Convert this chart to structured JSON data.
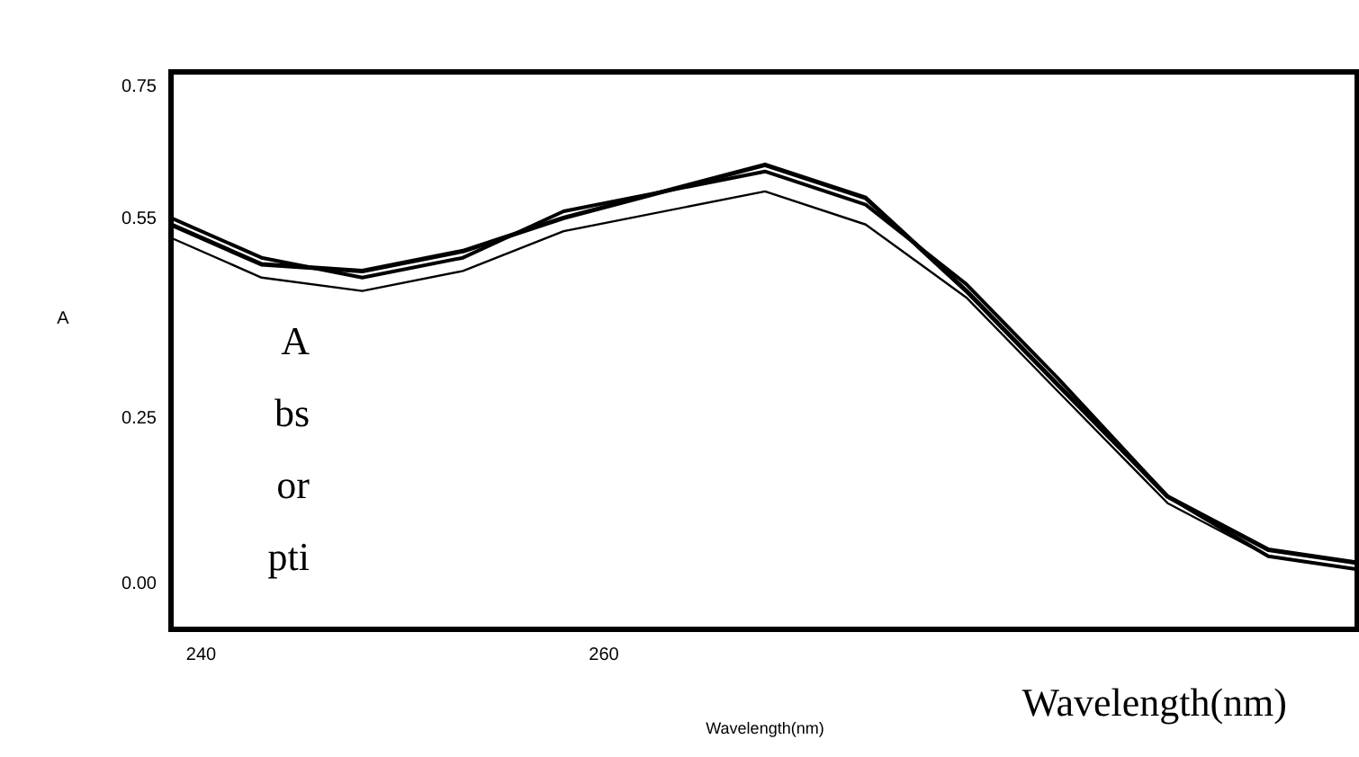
{
  "chart_data": {
    "type": "line",
    "xlabel": "Wavelength(nm)",
    "ylabel": "A",
    "annotations": [
      "Absorpti",
      "Wavelength(nm)"
    ],
    "x": [
      238.5,
      243,
      248,
      253,
      258,
      268,
      273,
      278,
      282.5,
      288,
      293,
      297.5
    ],
    "series": [
      {
        "color": "#000000",
        "values": [
          0.54,
          0.48,
          0.47,
          0.5,
          0.55,
          0.63,
          0.58,
          0.44,
          0.3,
          0.13,
          0.05,
          0.03
        ]
      },
      {
        "color": "#000000",
        "values": [
          0.55,
          0.49,
          0.46,
          0.49,
          0.56,
          0.62,
          0.57,
          0.45,
          0.31,
          0.13,
          0.04,
          0.02
        ]
      },
      {
        "color": "#000000",
        "values": [
          0.52,
          0.46,
          0.44,
          0.47,
          0.53,
          0.59,
          0.54,
          0.43,
          0.29,
          0.12,
          0.04,
          0.02
        ]
      }
    ],
    "xlim": [
      238.5,
      297.5
    ],
    "ylim": [
      -0.07,
      0.77
    ],
    "xticks": [
      240,
      260
    ],
    "yticks": [
      {
        "value": 0,
        "label": "0.00"
      },
      0.25,
      0.55,
      0.75
    ],
    "marker": "none",
    "line_style": "solid",
    "grid": false
  }
}
